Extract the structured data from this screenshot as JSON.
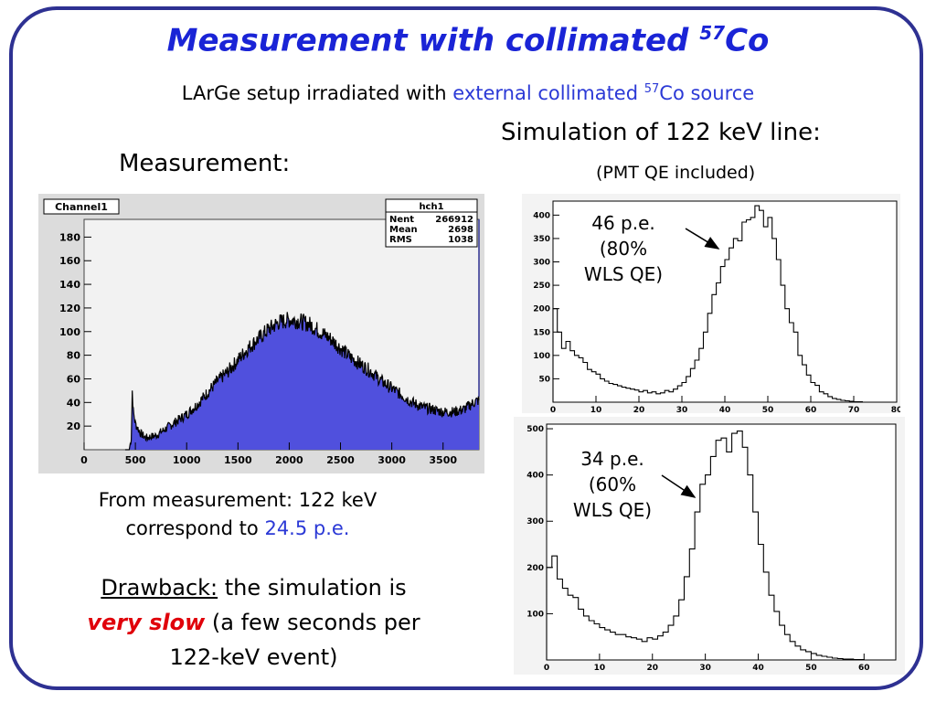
{
  "slide": {
    "title": "Measurement with collimated ",
    "title_sup": "57",
    "title_tail": "Co",
    "subtitle_a": "LArGe setup irradiated with ",
    "subtitle_b": "external collimated ",
    "subtitle_sup": "57",
    "subtitle_c": "Co source",
    "sim_heading": "Simulation of 122 keV line:",
    "sim_note": "(PMT QE included)",
    "meas_heading": "Measurement:",
    "from_line1": "From measurement: 122 keV",
    "from_line2a": "correspond to ",
    "from_line2b": "24.5 p.e.",
    "drawback_label": "Drawback:",
    "drawback_text1": " the simulation is",
    "drawback_red": "very slow",
    "drawback_text2": " (a few seconds per",
    "drawback_text3": "122-keV event)",
    "colors": {
      "title": "#1a24d6",
      "frame": "#2e3192",
      "accent_blue": "#2b39d6",
      "red": "#e0000a",
      "hist_fill": "#5050dd"
    }
  },
  "chart_data": [
    {
      "type": "area",
      "panel_label": "Channel1",
      "stats": {
        "name": "hch1",
        "rows": [
          [
            "Nent",
            "266912"
          ],
          [
            "Mean",
            "2698"
          ],
          [
            "RMS",
            "1038"
          ]
        ]
      },
      "xlim": [
        0,
        3850
      ],
      "ylim": [
        0,
        195
      ],
      "xticks": [
        0,
        500,
        1000,
        1500,
        2000,
        2500,
        3000,
        3500
      ],
      "yticks": [
        20,
        40,
        60,
        80,
        100,
        120,
        140,
        160,
        180
      ],
      "x": [
        400,
        440,
        460,
        470,
        480,
        500,
        550,
        600,
        700,
        800,
        900,
        1000,
        1100,
        1200,
        1300,
        1400,
        1500,
        1600,
        1700,
        1800,
        1900,
        2000,
        2100,
        2200,
        2300,
        2400,
        2500,
        2600,
        2700,
        2800,
        2900,
        3000,
        3100,
        3200,
        3300,
        3400,
        3500,
        3600,
        3700,
        3800,
        3850
      ],
      "y": [
        0,
        0,
        10,
        50,
        32,
        22,
        14,
        10,
        12,
        18,
        24,
        30,
        38,
        48,
        58,
        66,
        76,
        86,
        94,
        102,
        108,
        110,
        109,
        106,
        100,
        94,
        86,
        78,
        72,
        66,
        58,
        52,
        46,
        40,
        36,
        34,
        32,
        32,
        34,
        40,
        42
      ],
      "fluctuation": 10
    },
    {
      "type": "line",
      "annotation": [
        "46 p.e.",
        "(80%",
        "WLS QE)"
      ],
      "xlim": [
        0,
        80
      ],
      "ylim": [
        0,
        430
      ],
      "xticks": [
        0,
        10,
        20,
        30,
        40,
        50,
        60,
        70,
        80
      ],
      "yticks": [
        50,
        100,
        150,
        200,
        250,
        300,
        350,
        400
      ],
      "x": [
        0,
        1,
        2,
        3,
        4,
        5,
        6,
        7,
        8,
        9,
        10,
        11,
        12,
        13,
        14,
        15,
        16,
        17,
        18,
        19,
        20,
        21,
        22,
        23,
        24,
        25,
        26,
        27,
        28,
        29,
        30,
        31,
        32,
        33,
        34,
        35,
        36,
        37,
        38,
        39,
        40,
        41,
        42,
        43,
        44,
        45,
        46,
        47,
        48,
        49,
        50,
        51,
        52,
        53,
        54,
        55,
        56,
        57,
        58,
        59,
        60,
        61,
        62,
        63,
        64,
        65,
        66,
        67,
        68,
        69,
        70,
        71,
        72,
        73,
        74,
        75
      ],
      "y": [
        200,
        150,
        115,
        130,
        110,
        100,
        95,
        85,
        70,
        65,
        60,
        50,
        45,
        40,
        38,
        35,
        32,
        30,
        28,
        26,
        22,
        25,
        20,
        22,
        18,
        20,
        25,
        22,
        28,
        35,
        42,
        55,
        72,
        90,
        115,
        150,
        190,
        230,
        255,
        290,
        305,
        330,
        350,
        345,
        385,
        390,
        395,
        420,
        410,
        375,
        395,
        350,
        305,
        250,
        200,
        170,
        150,
        100,
        80,
        58,
        42,
        36,
        22,
        18,
        12,
        8,
        6,
        4,
        3,
        2,
        1,
        1,
        0,
        0,
        0,
        0
      ]
    },
    {
      "type": "line",
      "annotation": [
        "34 p.e.",
        "(60%",
        "WLS QE)"
      ],
      "xlim": [
        0,
        66
      ],
      "ylim": [
        0,
        510
      ],
      "xticks": [
        0,
        10,
        20,
        30,
        40,
        50,
        60
      ],
      "yticks": [
        100,
        200,
        300,
        400,
        500
      ],
      "x": [
        0,
        1,
        2,
        3,
        4,
        5,
        6,
        7,
        8,
        9,
        10,
        11,
        12,
        13,
        14,
        15,
        16,
        17,
        18,
        19,
        20,
        21,
        22,
        23,
        24,
        25,
        26,
        27,
        28,
        29,
        30,
        31,
        32,
        33,
        34,
        35,
        36,
        37,
        38,
        39,
        40,
        41,
        42,
        43,
        44,
        45,
        46,
        47,
        48,
        49,
        50,
        51,
        52,
        53,
        54,
        55,
        56,
        57,
        58,
        59,
        60
      ],
      "y": [
        200,
        225,
        175,
        155,
        140,
        135,
        110,
        95,
        85,
        78,
        70,
        65,
        60,
        55,
        55,
        50,
        48,
        45,
        40,
        48,
        45,
        52,
        60,
        75,
        95,
        130,
        180,
        240,
        320,
        380,
        400,
        440,
        475,
        480,
        450,
        490,
        495,
        460,
        400,
        320,
        250,
        190,
        140,
        105,
        75,
        55,
        40,
        30,
        22,
        18,
        14,
        10,
        8,
        6,
        4,
        3,
        2,
        2,
        1,
        1,
        0
      ]
    }
  ]
}
